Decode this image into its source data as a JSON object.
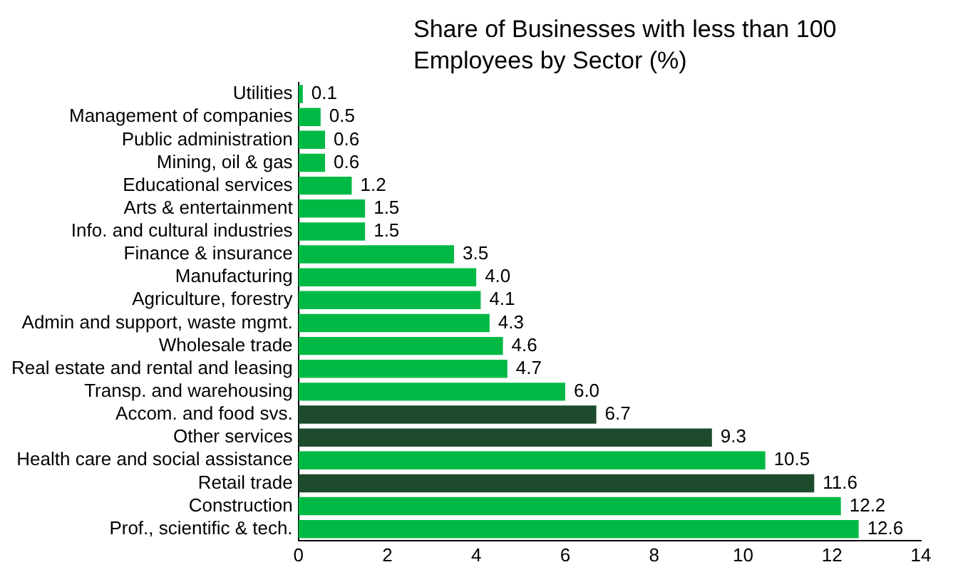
{
  "chart_data": {
    "type": "bar",
    "orientation": "horizontal",
    "title": "Share of Businesses with less than 100 Employees by Sector (%)",
    "categories": [
      "Utilities",
      "Management of companies",
      "Public administration",
      "Mining, oil & gas",
      "Educational services",
      "Arts & entertainment",
      "Info. and cultural industries",
      "Finance & insurance",
      "Manufacturing",
      "Agriculture, forestry",
      "Admin and support, waste mgmt.",
      "Wholesale trade",
      "Real estate and rental and leasing",
      "Transp. and warehousing",
      "Accom. and food svs.",
      "Other services",
      "Health care and social assistance",
      "Retail trade",
      "Construction",
      "Prof., scientific & tech."
    ],
    "values": [
      0.1,
      0.5,
      0.6,
      0.6,
      1.2,
      1.5,
      1.5,
      3.5,
      4.0,
      4.1,
      4.3,
      4.6,
      4.7,
      6.0,
      6.7,
      9.3,
      10.5,
      11.6,
      12.2,
      12.6
    ],
    "value_labels": [
      "0.1",
      "0.5",
      "0.6",
      "0.6",
      "1.2",
      "1.5",
      "1.5",
      "3.5",
      "4.0",
      "4.1",
      "4.3",
      "4.6",
      "4.7",
      "6.0",
      "6.7",
      "9.3",
      "10.5",
      "11.6",
      "12.2",
      "12.6"
    ],
    "colors": [
      "#00b945",
      "#00b945",
      "#00b945",
      "#00b945",
      "#00b945",
      "#00b945",
      "#00b945",
      "#00b945",
      "#00b945",
      "#00b945",
      "#00b945",
      "#00b945",
      "#00b945",
      "#00b945",
      "#1d4b2c",
      "#1d4b2c",
      "#00b945",
      "#1d4b2c",
      "#00b945",
      "#00b945"
    ],
    "xlim": [
      0,
      14
    ],
    "xticks": [
      0,
      2,
      4,
      6,
      8,
      10,
      12,
      14
    ],
    "grid": false,
    "legend": false
  }
}
